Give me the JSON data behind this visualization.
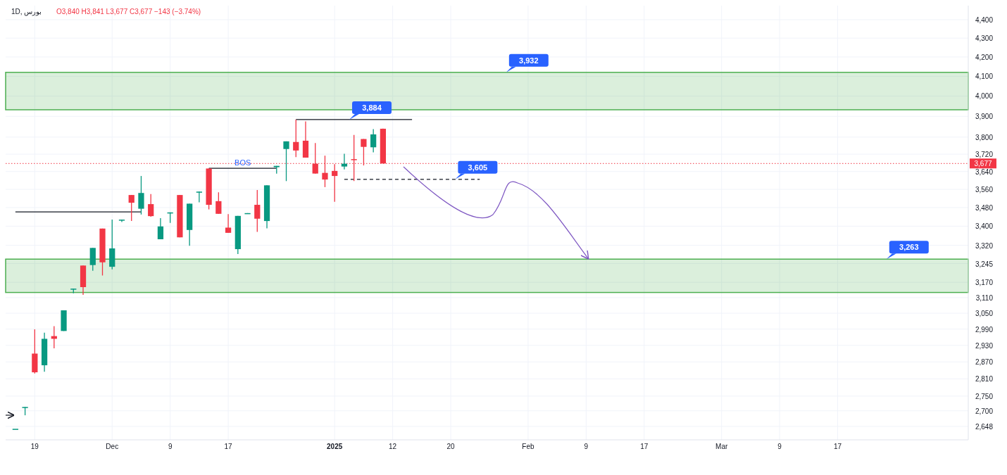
{
  "chart_data": {
    "type": "candlestick",
    "title": "1D, بورس",
    "subtitle": "O3,840 H3,841 L3,677 C3,677 −143 (−3.74%)",
    "categories": [
      null,
      null,
      "19",
      null,
      null,
      null,
      null,
      null,
      null,
      null,
      "Dec",
      null,
      null,
      null,
      null,
      null,
      "9",
      null,
      null,
      null,
      null,
      null,
      "17",
      null,
      null,
      null,
      null,
      null,
      null,
      null,
      null,
      null,
      null,
      "2025",
      null,
      null,
      null,
      null,
      null,
      "12",
      null,
      null,
      null,
      null,
      null,
      "20",
      null,
      null,
      null,
      null,
      null,
      null,
      null,
      "Feb",
      null,
      null,
      null,
      null,
      null,
      "9",
      null,
      null,
      null,
      null,
      null,
      "17",
      null,
      null,
      null,
      null,
      null,
      null,
      null,
      "Mar",
      null,
      null,
      null,
      null,
      null,
      "9",
      null,
      null,
      null,
      null,
      null,
      "17",
      null,
      null,
      null,
      null,
      null,
      null,
      null,
      null,
      null,
      null,
      null,
      null,
      null
    ],
    "ohlc": [
      [
        2640,
        2640,
        2640,
        2640
      ],
      [
        2713,
        2713,
        2685,
        2713
      ],
      [
        2900,
        2989,
        2829,
        2833
      ],
      [
        2858,
        2977,
        2835,
        2954
      ],
      [
        2964,
        3001,
        2919,
        2954
      ],
      [
        2983,
        3061,
        2983,
        3061
      ],
      [
        3145,
        3145,
        3127,
        3145
      ],
      [
        3237,
        3237,
        3121,
        3151
      ],
      [
        3239,
        3309,
        3216,
        3309
      ],
      [
        3390,
        3390,
        3197,
        3250
      ],
      [
        3232,
        3428,
        3222,
        3307
      ],
      [
        3425,
        3428,
        3418,
        3428
      ],
      [
        3535,
        3535,
        3422,
        3501
      ],
      [
        3475,
        3620,
        3450,
        3544
      ],
      [
        3495,
        3539,
        3440,
        3443
      ],
      [
        3345,
        3434,
        3345,
        3399
      ],
      [
        3459,
        3459,
        3414,
        3459
      ],
      [
        3535,
        3535,
        3353,
        3353
      ],
      [
        3384,
        3497,
        3318,
        3497
      ],
      [
        3550,
        3550,
        3503,
        3550
      ],
      [
        3654,
        3654,
        3472,
        3492
      ],
      [
        3508,
        3547,
        3453,
        3453
      ],
      [
        3394,
        3452,
        3372,
        3372
      ],
      [
        3304,
        3444,
        3284,
        3444
      ],
      [
        3454,
        3456,
        3454,
        3456
      ],
      [
        3492,
        3557,
        3376,
        3432
      ],
      [
        3422,
        3578,
        3391,
        3578
      ],
      [
        3660,
        3666,
        3631,
        3666
      ],
      [
        3744,
        3780,
        3597,
        3780
      ],
      [
        3777,
        3884,
        3706,
        3737
      ],
      [
        3783,
        3875,
        3704,
        3704
      ],
      [
        3676,
        3772,
        3631,
        3631
      ],
      [
        3634,
        3713,
        3570,
        3604
      ],
      [
        3643,
        3674,
        3505,
        3620
      ],
      [
        3663,
        3722,
        3650,
        3676
      ],
      [
        3697,
        3810,
        3597,
        3693
      ],
      [
        3791,
        3791,
        3668,
        3754
      ],
      [
        3752,
        3838,
        3728,
        3813
      ],
      [
        3840,
        3841,
        3677,
        3677
      ],
      null,
      null,
      null,
      null,
      null,
      null,
      null,
      null,
      null,
      null,
      null,
      null,
      null,
      null,
      null,
      null,
      null,
      null,
      null,
      null,
      null,
      null,
      null,
      null,
      null,
      null,
      null,
      null,
      null,
      null,
      null,
      null,
      null,
      null,
      null,
      null,
      null,
      null,
      null,
      null,
      null,
      null,
      null,
      null,
      null,
      null,
      null,
      null,
      null,
      null,
      null,
      null,
      null,
      null,
      null,
      null,
      null,
      null,
      null,
      null
    ],
    "series": [
      {
        "type": "line",
        "color": "#131722",
        "line_style": "solid",
        "values": [
          3461,
          3461,
          3461,
          3461,
          3461,
          3461,
          3461,
          3461,
          3461,
          3461,
          3461,
          3461,
          3461,
          3461,
          null,
          null,
          null,
          null,
          null,
          null,
          null,
          null,
          null,
          null,
          null,
          null,
          null,
          null,
          null,
          null,
          null,
          null,
          null,
          null,
          null,
          null,
          null,
          null,
          null,
          null,
          null,
          null,
          null,
          null,
          null,
          null,
          null,
          null,
          null,
          null,
          null,
          null,
          null,
          null,
          null,
          null,
          null,
          null,
          null,
          null,
          null,
          null,
          null,
          null,
          null,
          null,
          null,
          null,
          null,
          null,
          null,
          null,
          null,
          null,
          null,
          null,
          null,
          null,
          null,
          null,
          null,
          null,
          null,
          null,
          null,
          null,
          null,
          null,
          null,
          null,
          null,
          null,
          null,
          null,
          null,
          null,
          null,
          null,
          null
        ]
      },
      {
        "type": "line",
        "color": "#131722",
        "line_style": "solid",
        "values": [
          null,
          null,
          null,
          null,
          null,
          null,
          null,
          null,
          null,
          null,
          null,
          null,
          null,
          null,
          null,
          null,
          null,
          null,
          null,
          null,
          3655,
          3655,
          3655,
          3655,
          3655,
          3655,
          3655,
          3655,
          null,
          null,
          null,
          null,
          null,
          null,
          null,
          null,
          null,
          null,
          null,
          null,
          null,
          null,
          null,
          null,
          null,
          null,
          null,
          null,
          null,
          null,
          null,
          null,
          null,
          null,
          null,
          null,
          null,
          null,
          null,
          null,
          null,
          null,
          null,
          null,
          null,
          null,
          null,
          null,
          null,
          null,
          null,
          null,
          null,
          null,
          null,
          null,
          null,
          null,
          null,
          null,
          null,
          null,
          null,
          null,
          null,
          null,
          null,
          null,
          null,
          null,
          null,
          null,
          null,
          null,
          null,
          null,
          null,
          null,
          null
        ]
      },
      {
        "type": "line",
        "color": "#131722",
        "line_style": "solid",
        "values": [
          null,
          null,
          null,
          null,
          null,
          null,
          null,
          null,
          null,
          null,
          null,
          null,
          null,
          null,
          null,
          null,
          null,
          null,
          null,
          null,
          null,
          null,
          null,
          null,
          null,
          null,
          null,
          null,
          null,
          3884,
          3884,
          3884,
          3884,
          3884,
          3884,
          3884,
          3884,
          3884,
          3884,
          3884,
          3884,
          3884,
          null,
          null,
          null,
          null,
          null,
          null,
          null,
          null,
          null,
          null,
          null,
          null,
          null,
          null,
          null,
          null,
          null,
          null,
          null,
          null,
          null,
          null,
          null,
          null,
          null,
          null,
          null,
          null,
          null,
          null,
          null,
          null,
          null,
          null,
          null,
          null,
          null,
          null,
          null,
          null,
          null,
          null,
          null,
          null,
          null,
          null,
          null,
          null,
          null,
          null,
          null,
          null,
          null,
          null,
          null,
          null,
          null
        ]
      },
      {
        "type": "line",
        "color": "#131722",
        "line_style": "dashed",
        "values": [
          null,
          null,
          null,
          null,
          null,
          null,
          null,
          null,
          null,
          null,
          null,
          null,
          null,
          null,
          null,
          null,
          null,
          null,
          null,
          null,
          null,
          null,
          null,
          null,
          null,
          null,
          null,
          null,
          null,
          null,
          null,
          null,
          null,
          null,
          3605,
          3605,
          3605,
          3605,
          3605,
          3605,
          3605,
          3605,
          3605,
          3605,
          3605,
          3605,
          3605,
          3605,
          3605,
          null,
          null,
          null,
          null,
          null,
          null,
          null,
          null,
          null,
          null,
          null,
          null,
          null,
          null,
          null,
          null,
          null,
          null,
          null,
          null,
          null,
          null,
          null,
          null,
          null,
          null,
          null,
          null,
          null,
          null,
          null,
          null,
          null,
          null,
          null,
          null,
          null,
          null,
          null,
          null,
          null,
          null,
          null,
          null,
          null,
          null,
          null,
          null,
          null,
          null
        ]
      }
    ],
    "bands": [
      {
        "axis": "y",
        "from": 3932,
        "to": 4120,
        "label": "3,932",
        "color": "#4caf50"
      },
      {
        "axis": "y",
        "from": 3130,
        "to": 3263,
        "label": "3,263",
        "color": "#4caf50"
      }
    ],
    "ref_lines": [
      {
        "axis": "y",
        "value": 3677,
        "label": "3,677",
        "color": "#f23645",
        "line_style": "dotted"
      }
    ],
    "annotations": [
      {
        "text": "3,884",
        "y": 3884
      },
      {
        "text": "BOS",
        "y": 3655
      },
      {
        "text": "3,605",
        "y": 3605
      }
    ],
    "log": true,
    "grid": true,
    "ylim": [
      2604,
      4478
    ],
    "yticks": [
      {
        "value": 2648,
        "label": "2,648"
      },
      {
        "value": 2700,
        "label": "2,700"
      },
      {
        "value": 2750,
        "label": "2,750"
      },
      {
        "value": 2810,
        "label": "2,810"
      },
      {
        "value": 2870,
        "label": "2,870"
      },
      {
        "value": 2930,
        "label": "2,930"
      },
      {
        "value": 2990,
        "label": "2,990"
      },
      {
        "value": 3050,
        "label": "3,050"
      },
      {
        "value": 3110,
        "label": "3,110"
      },
      {
        "value": 3170,
        "label": "3,170"
      },
      {
        "value": 3245,
        "label": "3,245"
      },
      {
        "value": 3320,
        "label": "3,320"
      },
      {
        "value": 3400,
        "label": "3,400"
      },
      {
        "value": 3480,
        "label": "3,480"
      },
      {
        "value": 3560,
        "label": "3,560"
      },
      {
        "value": 3640,
        "label": "3,640"
      },
      {
        "value": 3720,
        "label": "3,720"
      },
      {
        "value": 3800,
        "label": "3,800"
      },
      {
        "value": 3900,
        "label": "3,900"
      },
      {
        "value": 4000,
        "label": "4,000"
      },
      {
        "value": 4100,
        "label": "4,100"
      },
      {
        "value": 4200,
        "label": "4,200"
      },
      {
        "value": 4300,
        "label": "4,300"
      },
      {
        "value": 4400,
        "label": "4,400"
      }
    ]
  }
}
